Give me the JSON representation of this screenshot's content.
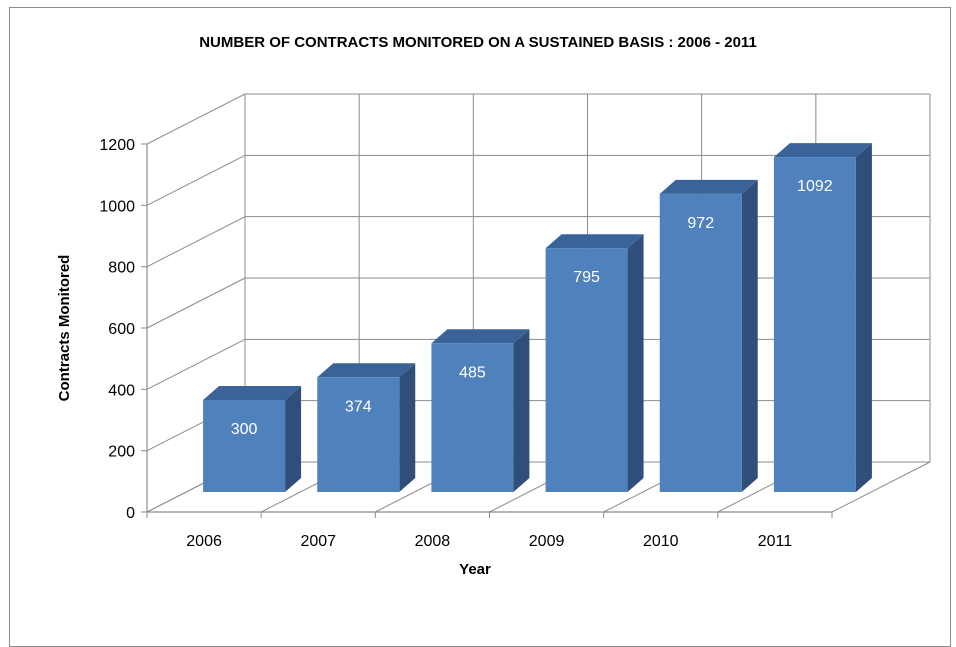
{
  "chart_data": {
    "type": "bar",
    "title": "NUMBER OF CONTRACTS MONITORED ON A SUSTAINED BASIS : 2006 - 2011",
    "xlabel": "Year",
    "ylabel": "Contracts Monitored",
    "categories": [
      "2006",
      "2007",
      "2008",
      "2009",
      "2010",
      "2011"
    ],
    "values": [
      300,
      374,
      485,
      795,
      972,
      1092
    ],
    "data_labels": [
      "300",
      "374",
      "485",
      "795",
      "972",
      "1092"
    ],
    "yticks": [
      "0",
      "200",
      "400",
      "600",
      "800",
      "1000",
      "1200"
    ],
    "ylim": [
      0,
      1200
    ],
    "grid": true,
    "legend": "none",
    "style": "3d-column",
    "colors": {
      "front": "#4f81bd",
      "side": "#2f4f7a",
      "top": "#3a6399",
      "grid": "#8c8c8c"
    }
  }
}
